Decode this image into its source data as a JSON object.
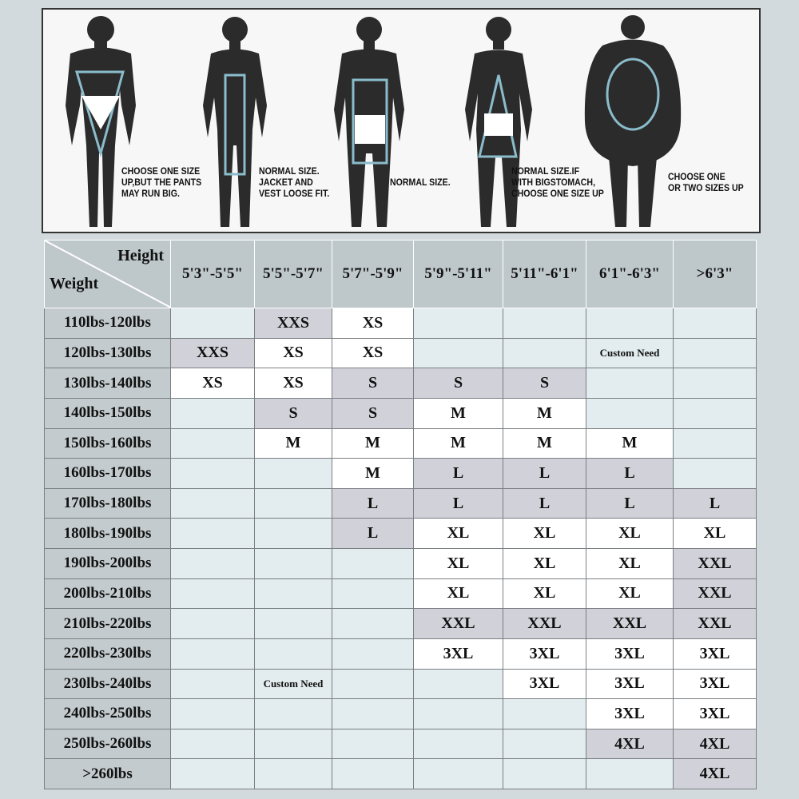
{
  "figures": [
    {
      "shape": "inverted-triangle",
      "note": "CHOOSE ONE SIZE\nUP,BUT THE PANTS\nMAY RUN BIG."
    },
    {
      "shape": "rectangle-narrow",
      "note": "NORMAL SIZE.\nJACKET AND\nVEST LOOSE FIT."
    },
    {
      "shape": "rectangle",
      "note": "NORMAL SIZE."
    },
    {
      "shape": "triangle",
      "note": "NORMAL SIZE.IF\nWITH BIGSTOMACH,\nCHOOSE ONE SIZE UP"
    },
    {
      "shape": "oval",
      "note": "CHOOSE ONE\nOR TWO SIZES UP"
    }
  ],
  "colors": {
    "silhouette": "#2b2b2b",
    "outline": "#8bbccc",
    "header": "#bec7ca",
    "empty": "#e3ecee",
    "gray": "#d1d1d9",
    "white": "#ffffff"
  },
  "table": {
    "corner_top": "Height",
    "corner_bottom": "Weight",
    "columns": [
      "5'3\"-5'5\"",
      "5'5\"-5'7\"",
      "5'7\"-5'9\"",
      "5'9\"-5'11\"",
      "5'11\"-6'1\"",
      "6'1\"-6'3\"",
      ">6'3\""
    ],
    "rows": [
      {
        "label": "110lbs-120lbs",
        "cells": [
          [
            "",
            "e"
          ],
          [
            "XXS",
            "g"
          ],
          [
            "XS",
            "w"
          ],
          [
            "",
            "e"
          ],
          [
            "",
            "e"
          ],
          [
            "",
            "e"
          ],
          [
            "",
            "e"
          ]
        ]
      },
      {
        "label": "120lbs-130lbs",
        "cells": [
          [
            "XXS",
            "g"
          ],
          [
            "XS",
            "w"
          ],
          [
            "XS",
            "w"
          ],
          [
            "",
            "e"
          ],
          [
            "",
            "e"
          ],
          [
            "Custom Need",
            "e"
          ],
          [
            "",
            "e"
          ]
        ]
      },
      {
        "label": "130lbs-140lbs",
        "cells": [
          [
            "XS",
            "w"
          ],
          [
            "XS",
            "w"
          ],
          [
            "S",
            "g"
          ],
          [
            "S",
            "g"
          ],
          [
            "S",
            "g"
          ],
          [
            "",
            "e"
          ],
          [
            "",
            "e"
          ]
        ]
      },
      {
        "label": "140lbs-150lbs",
        "cells": [
          [
            "",
            "e"
          ],
          [
            "S",
            "g"
          ],
          [
            "S",
            "g"
          ],
          [
            "M",
            "w"
          ],
          [
            "M",
            "w"
          ],
          [
            "",
            "e"
          ],
          [
            "",
            "e"
          ]
        ]
      },
      {
        "label": "150lbs-160lbs",
        "cells": [
          [
            "",
            "e"
          ],
          [
            "M",
            "w"
          ],
          [
            "M",
            "w"
          ],
          [
            "M",
            "w"
          ],
          [
            "M",
            "w"
          ],
          [
            "M",
            "w"
          ],
          [
            "",
            "e"
          ]
        ]
      },
      {
        "label": "160lbs-170lbs",
        "cells": [
          [
            "",
            "e"
          ],
          [
            "",
            "e"
          ],
          [
            "M",
            "w"
          ],
          [
            "L",
            "g"
          ],
          [
            "L",
            "g"
          ],
          [
            "L",
            "g"
          ],
          [
            "",
            "e"
          ]
        ]
      },
      {
        "label": "170lbs-180lbs",
        "cells": [
          [
            "",
            "e"
          ],
          [
            "",
            "e"
          ],
          [
            "L",
            "g"
          ],
          [
            "L",
            "g"
          ],
          [
            "L",
            "g"
          ],
          [
            "L",
            "g"
          ],
          [
            "L",
            "g"
          ]
        ]
      },
      {
        "label": "180lbs-190lbs",
        "cells": [
          [
            "",
            "e"
          ],
          [
            "",
            "e"
          ],
          [
            "L",
            "g"
          ],
          [
            "XL",
            "w"
          ],
          [
            "XL",
            "w"
          ],
          [
            "XL",
            "w"
          ],
          [
            "XL",
            "w"
          ]
        ]
      },
      {
        "label": "190lbs-200lbs",
        "cells": [
          [
            "",
            "e"
          ],
          [
            "",
            "e"
          ],
          [
            "",
            "e"
          ],
          [
            "XL",
            "w"
          ],
          [
            "XL",
            "w"
          ],
          [
            "XL",
            "w"
          ],
          [
            "XXL",
            "g"
          ]
        ]
      },
      {
        "label": "200lbs-210lbs",
        "cells": [
          [
            "",
            "e"
          ],
          [
            "",
            "e"
          ],
          [
            "",
            "e"
          ],
          [
            "XL",
            "w"
          ],
          [
            "XL",
            "w"
          ],
          [
            "XL",
            "w"
          ],
          [
            "XXL",
            "g"
          ]
        ]
      },
      {
        "label": "210lbs-220lbs",
        "cells": [
          [
            "",
            "e"
          ],
          [
            "",
            "e"
          ],
          [
            "",
            "e"
          ],
          [
            "XXL",
            "g"
          ],
          [
            "XXL",
            "g"
          ],
          [
            "XXL",
            "g"
          ],
          [
            "XXL",
            "g"
          ]
        ]
      },
      {
        "label": "220lbs-230lbs",
        "cells": [
          [
            "",
            "e"
          ],
          [
            "",
            "e"
          ],
          [
            "",
            "e"
          ],
          [
            "3XL",
            "w"
          ],
          [
            "3XL",
            "w"
          ],
          [
            "3XL",
            "w"
          ],
          [
            "3XL",
            "w"
          ]
        ]
      },
      {
        "label": "230lbs-240lbs",
        "cells": [
          [
            "",
            "e"
          ],
          [
            "Custom Need",
            "e"
          ],
          [
            "",
            "e"
          ],
          [
            "",
            "e"
          ],
          [
            "3XL",
            "w"
          ],
          [
            "3XL",
            "w"
          ],
          [
            "3XL",
            "w"
          ]
        ]
      },
      {
        "label": "240lbs-250lbs",
        "cells": [
          [
            "",
            "e"
          ],
          [
            "",
            "e"
          ],
          [
            "",
            "e"
          ],
          [
            "",
            "e"
          ],
          [
            "",
            "e"
          ],
          [
            "3XL",
            "w"
          ],
          [
            "3XL",
            "w"
          ]
        ]
      },
      {
        "label": "250lbs-260lbs",
        "cells": [
          [
            "",
            "e"
          ],
          [
            "",
            "e"
          ],
          [
            "",
            "e"
          ],
          [
            "",
            "e"
          ],
          [
            "",
            "e"
          ],
          [
            "4XL",
            "g"
          ],
          [
            "4XL",
            "g"
          ]
        ]
      },
      {
        "label": ">260lbs",
        "cells": [
          [
            "",
            "e"
          ],
          [
            "",
            "e"
          ],
          [
            "",
            "e"
          ],
          [
            "",
            "e"
          ],
          [
            "",
            "e"
          ],
          [
            "",
            "e"
          ],
          [
            "4XL",
            "g"
          ]
        ]
      }
    ]
  }
}
